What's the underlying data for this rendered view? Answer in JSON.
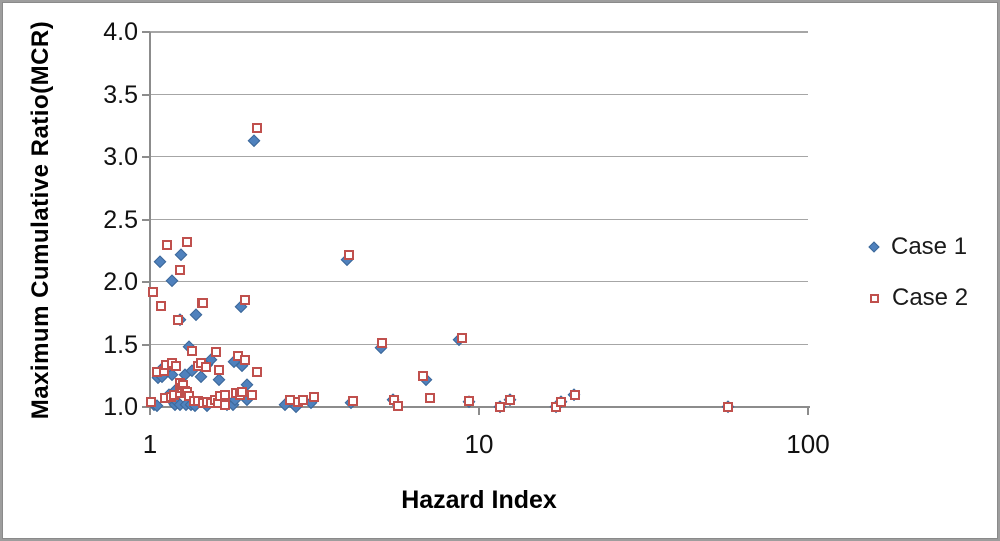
{
  "chart_data": {
    "type": "scatter",
    "x_scale": "log",
    "title": "",
    "xlabel": "Hazard Index",
    "ylabel": "Maximum Cumulative Ratio(MCR)",
    "xlim": [
      1,
      100
    ],
    "ylim": [
      1.0,
      4.0
    ],
    "x_tick_labels": [
      "1",
      "10",
      "100"
    ],
    "x_tick_values": [
      1,
      10,
      100
    ],
    "y_tick_labels": [
      "4.0",
      "3.5",
      "3.0",
      "2.5",
      "2.0",
      "1.5",
      "1.0"
    ],
    "y_tick_values": [
      4.0,
      3.5,
      3.0,
      2.5,
      2.0,
      1.5,
      1.0
    ],
    "grid": "horizontal",
    "legend_position": "right",
    "colors": {
      "case1": "#4F81BD",
      "case2": "#C0504D",
      "gridline": "#A6A6A6",
      "axis": "#8C8C8C"
    },
    "series": [
      {
        "name": "Case 1",
        "marker": "diamond",
        "color": "#4F81BD",
        "points": [
          [
            1.03,
            1.02
          ],
          [
            1.05,
            1.01
          ],
          [
            1.06,
            1.23
          ],
          [
            1.07,
            2.16
          ],
          [
            1.08,
            1.3
          ],
          [
            1.09,
            1.24
          ],
          [
            1.1,
            1.31
          ],
          [
            1.14,
            1.07
          ],
          [
            1.14,
            1.1
          ],
          [
            1.15,
            1.32
          ],
          [
            1.17,
            1.26
          ],
          [
            1.17,
            2.01
          ],
          [
            1.19,
            1.02
          ],
          [
            1.2,
            1.14
          ],
          [
            1.2,
            1.05
          ],
          [
            1.23,
            1.02
          ],
          [
            1.23,
            1.7
          ],
          [
            1.24,
            2.22
          ],
          [
            1.28,
            1.26
          ],
          [
            1.29,
            1.02
          ],
          [
            1.31,
            1.48
          ],
          [
            1.33,
            1.02
          ],
          [
            1.34,
            1.29
          ],
          [
            1.37,
            1.01
          ],
          [
            1.38,
            1.74
          ],
          [
            1.43,
            1.24
          ],
          [
            1.49,
            1.01
          ],
          [
            1.49,
            1.34
          ],
          [
            1.53,
            1.38
          ],
          [
            1.62,
            1.22
          ],
          [
            1.71,
            1.02
          ],
          [
            1.79,
            1.02
          ],
          [
            1.8,
            1.36
          ],
          [
            1.81,
            1.06
          ],
          [
            1.89,
            1.8
          ],
          [
            1.9,
            1.33
          ],
          [
            1.97,
            1.18
          ],
          [
            1.97,
            1.06
          ],
          [
            2.07,
            3.13
          ],
          [
            2.57,
            1.02
          ],
          [
            2.77,
            1.0
          ],
          [
            3.08,
            1.03
          ],
          [
            3.96,
            2.18
          ],
          [
            4.07,
            1.03
          ],
          [
            5.03,
            1.47
          ],
          [
            5.47,
            1.06
          ],
          [
            6.89,
            1.22
          ],
          [
            8.7,
            1.54
          ],
          [
            9.3,
            1.04
          ],
          [
            11.6,
            1.0
          ],
          [
            12.4,
            1.06
          ],
          [
            17.2,
            1.0
          ],
          [
            17.8,
            1.04
          ],
          [
            19.5,
            1.1
          ],
          [
            57,
            1.0
          ]
        ]
      },
      {
        "name": "Case 2",
        "marker": "open-square",
        "color": "#C0504D",
        "points": [
          [
            1.01,
            1.04
          ],
          [
            1.02,
            1.92
          ],
          [
            1.05,
            1.28
          ],
          [
            1.08,
            1.81
          ],
          [
            1.1,
            1.29
          ],
          [
            1.11,
            1.07
          ],
          [
            1.12,
            1.34
          ],
          [
            1.13,
            2.3
          ],
          [
            1.16,
            1.08
          ],
          [
            1.17,
            1.35
          ],
          [
            1.18,
            1.1
          ],
          [
            1.2,
            1.33
          ],
          [
            1.22,
            1.7
          ],
          [
            1.23,
            1.19
          ],
          [
            1.23,
            2.1
          ],
          [
            1.23,
            1.11
          ],
          [
            1.25,
            1.15
          ],
          [
            1.26,
            1.18
          ],
          [
            1.28,
            1.13
          ],
          [
            1.3,
            2.32
          ],
          [
            1.3,
            1.12
          ],
          [
            1.31,
            1.09
          ],
          [
            1.34,
            1.45
          ],
          [
            1.36,
            1.05
          ],
          [
            1.4,
            1.33
          ],
          [
            1.4,
            1.05
          ],
          [
            1.43,
            1.35
          ],
          [
            1.44,
            1.83
          ],
          [
            1.45,
            1.83
          ],
          [
            1.45,
            1.03
          ],
          [
            1.48,
            1.32
          ],
          [
            1.49,
            1.04
          ],
          [
            1.53,
            1.03
          ],
          [
            1.58,
            1.06
          ],
          [
            1.59,
            1.44
          ],
          [
            1.61,
            1.03
          ],
          [
            1.62,
            1.3
          ],
          [
            1.63,
            1.09
          ],
          [
            1.69,
            1.1
          ],
          [
            1.69,
            1.02
          ],
          [
            1.82,
            1.11
          ],
          [
            1.85,
            1.41
          ],
          [
            1.88,
            1.1
          ],
          [
            1.9,
            1.12
          ],
          [
            1.94,
            1.86
          ],
          [
            1.94,
            1.38
          ],
          [
            2.04,
            1.1
          ],
          [
            2.11,
            3.23
          ],
          [
            2.11,
            1.28
          ],
          [
            2.66,
            1.06
          ],
          [
            2.82,
            1.04
          ],
          [
            2.92,
            1.06
          ],
          [
            3.15,
            1.08
          ],
          [
            4.04,
            2.22
          ],
          [
            4.13,
            1.05
          ],
          [
            5.06,
            1.51
          ],
          [
            5.5,
            1.06
          ],
          [
            5.66,
            1.01
          ],
          [
            6.75,
            1.25
          ],
          [
            7.1,
            1.07
          ],
          [
            8.9,
            1.55
          ],
          [
            9.3,
            1.05
          ],
          [
            11.6,
            1.0
          ],
          [
            12.4,
            1.06
          ],
          [
            17.2,
            1.0
          ],
          [
            17.8,
            1.04
          ],
          [
            19.6,
            1.1
          ],
          [
            57,
            1.0
          ]
        ]
      }
    ]
  }
}
